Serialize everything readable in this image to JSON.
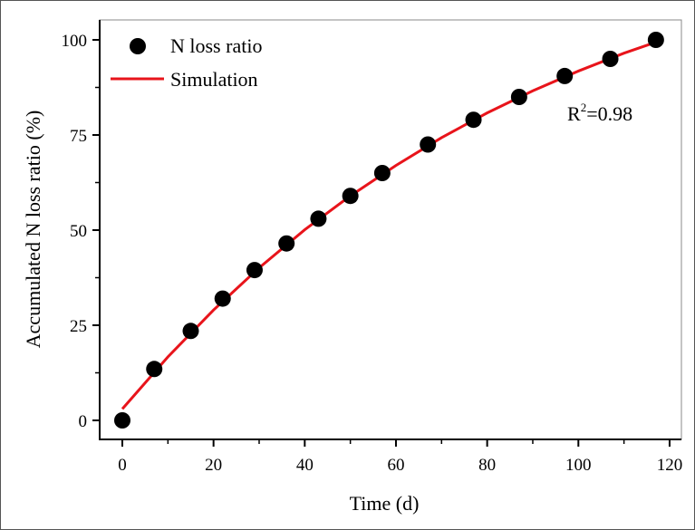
{
  "chart_data": {
    "type": "scatter",
    "title": "",
    "xlabel": "Time (d)",
    "ylabel": "Accumulated N loss ratio (%)",
    "xlim": [
      -5,
      122
    ],
    "ylim": [
      -5,
      105
    ],
    "xticks": [
      0,
      20,
      40,
      60,
      80,
      100,
      120
    ],
    "yticks": [
      0,
      25,
      50,
      75,
      100
    ],
    "grid": false,
    "legend": "top-left",
    "annotation": {
      "text_base": "R",
      "text_sup": "2",
      "text_rest": "=0.98"
    },
    "series": [
      {
        "name": "N loss ratio",
        "kind": "scatter",
        "color": "#000000",
        "x": [
          0,
          7,
          15,
          22,
          29,
          36,
          43,
          50,
          57,
          67,
          77,
          87,
          97,
          107,
          117
        ],
        "y": [
          0,
          13.5,
          23.5,
          32,
          39.5,
          46.5,
          53,
          59,
          65,
          72.5,
          79,
          85,
          90.5,
          95,
          100
        ]
      },
      {
        "name": "Simulation",
        "kind": "line",
        "color": "#e8141b",
        "x": [
          0,
          10,
          20,
          30,
          40,
          50,
          60,
          70,
          80,
          90,
          100,
          110,
          118
        ],
        "y": [
          3.0,
          16.7,
          29.0,
          40.1,
          50.1,
          59.0,
          67.0,
          74.3,
          80.8,
          86.6,
          91.8,
          96.5,
          99.8
        ]
      }
    ]
  }
}
